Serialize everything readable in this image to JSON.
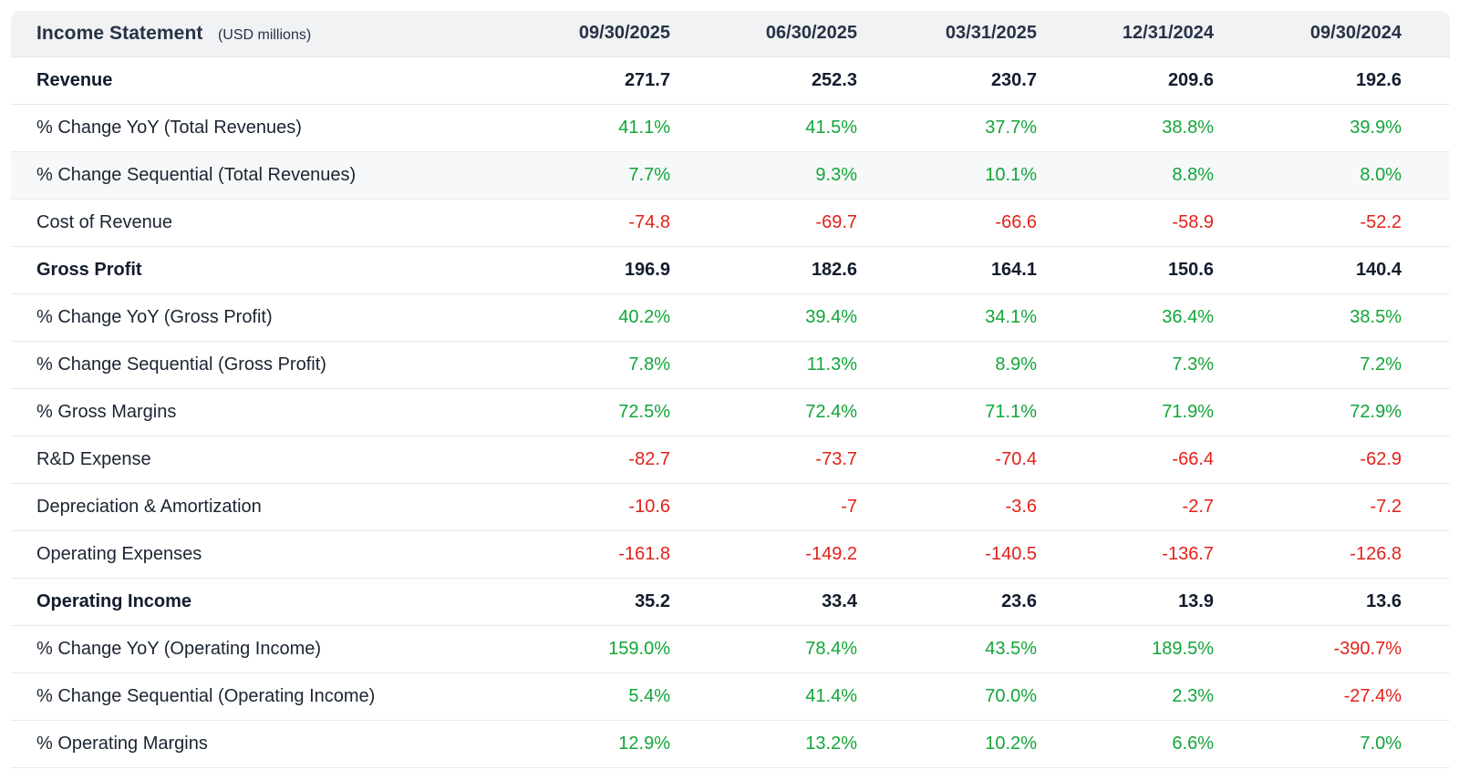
{
  "table": {
    "title": "Income Statement",
    "subtitle": "(USD millions)",
    "columns": [
      "09/30/2025",
      "06/30/2025",
      "03/31/2025",
      "12/31/2024",
      "09/30/2024"
    ],
    "rows": [
      {
        "label": "Revenue",
        "type": "section",
        "hovered": false,
        "values": [
          "271.7",
          "252.3",
          "230.7",
          "209.6",
          "192.6"
        ],
        "tones": [
          "neutral",
          "neutral",
          "neutral",
          "neutral",
          "neutral"
        ]
      },
      {
        "label": "% Change YoY (Total Revenues)",
        "type": "detail",
        "hovered": false,
        "values": [
          "41.1%",
          "41.5%",
          "37.7%",
          "38.8%",
          "39.9%"
        ],
        "tones": [
          "positive",
          "positive",
          "positive",
          "positive",
          "positive"
        ]
      },
      {
        "label": "% Change Sequential (Total Revenues)",
        "type": "detail",
        "hovered": true,
        "values": [
          "7.7%",
          "9.3%",
          "10.1%",
          "8.8%",
          "8.0%"
        ],
        "tones": [
          "positive",
          "positive",
          "positive",
          "positive",
          "positive"
        ]
      },
      {
        "label": "Cost of Revenue",
        "type": "detail",
        "hovered": false,
        "values": [
          "-74.8",
          "-69.7",
          "-66.6",
          "-58.9",
          "-52.2"
        ],
        "tones": [
          "negative",
          "negative",
          "negative",
          "negative",
          "negative"
        ]
      },
      {
        "label": "Gross Profit",
        "type": "section",
        "hovered": false,
        "values": [
          "196.9",
          "182.6",
          "164.1",
          "150.6",
          "140.4"
        ],
        "tones": [
          "neutral",
          "neutral",
          "neutral",
          "neutral",
          "neutral"
        ]
      },
      {
        "label": "% Change YoY (Gross Profit)",
        "type": "detail",
        "hovered": false,
        "values": [
          "40.2%",
          "39.4%",
          "34.1%",
          "36.4%",
          "38.5%"
        ],
        "tones": [
          "positive",
          "positive",
          "positive",
          "positive",
          "positive"
        ]
      },
      {
        "label": "% Change Sequential (Gross Profit)",
        "type": "detail",
        "hovered": false,
        "values": [
          "7.8%",
          "11.3%",
          "8.9%",
          "7.3%",
          "7.2%"
        ],
        "tones": [
          "positive",
          "positive",
          "positive",
          "positive",
          "positive"
        ]
      },
      {
        "label": "% Gross Margins",
        "type": "detail",
        "hovered": false,
        "values": [
          "72.5%",
          "72.4%",
          "71.1%",
          "71.9%",
          "72.9%"
        ],
        "tones": [
          "positive",
          "positive",
          "positive",
          "positive",
          "positive"
        ]
      },
      {
        "label": "R&D Expense",
        "type": "detail",
        "hovered": false,
        "values": [
          "-82.7",
          "-73.7",
          "-70.4",
          "-66.4",
          "-62.9"
        ],
        "tones": [
          "negative",
          "negative",
          "negative",
          "negative",
          "negative"
        ]
      },
      {
        "label": "Depreciation & Amortization",
        "type": "detail",
        "hovered": false,
        "values": [
          "-10.6",
          "-7",
          "-3.6",
          "-2.7",
          "-7.2"
        ],
        "tones": [
          "negative",
          "negative",
          "negative",
          "negative",
          "negative"
        ]
      },
      {
        "label": "Operating Expenses",
        "type": "detail",
        "hovered": false,
        "values": [
          "-161.8",
          "-149.2",
          "-140.5",
          "-136.7",
          "-126.8"
        ],
        "tones": [
          "negative",
          "negative",
          "negative",
          "negative",
          "negative"
        ]
      },
      {
        "label": "Operating Income",
        "type": "section",
        "hovered": false,
        "values": [
          "35.2",
          "33.4",
          "23.6",
          "13.9",
          "13.6"
        ],
        "tones": [
          "neutral",
          "neutral",
          "neutral",
          "neutral",
          "neutral"
        ]
      },
      {
        "label": "% Change YoY (Operating Income)",
        "type": "detail",
        "hovered": false,
        "values": [
          "159.0%",
          "78.4%",
          "43.5%",
          "189.5%",
          "-390.7%"
        ],
        "tones": [
          "positive",
          "positive",
          "positive",
          "positive",
          "negative"
        ]
      },
      {
        "label": "% Change Sequential (Operating Income)",
        "type": "detail",
        "hovered": false,
        "values": [
          "5.4%",
          "41.4%",
          "70.0%",
          "2.3%",
          "-27.4%"
        ],
        "tones": [
          "positive",
          "positive",
          "positive",
          "positive",
          "negative"
        ]
      },
      {
        "label": "% Operating Margins",
        "type": "detail",
        "hovered": false,
        "values": [
          "12.9%",
          "13.2%",
          "10.2%",
          "6.6%",
          "7.0%"
        ],
        "tones": [
          "positive",
          "positive",
          "positive",
          "positive",
          "positive"
        ]
      }
    ]
  },
  "colors": {
    "positive": "#12a538",
    "negative": "#e32119",
    "header_bg": "#f0f2f3",
    "header_text": "#273247",
    "label_text": "#1b2432",
    "section_text": "#131c2e"
  }
}
